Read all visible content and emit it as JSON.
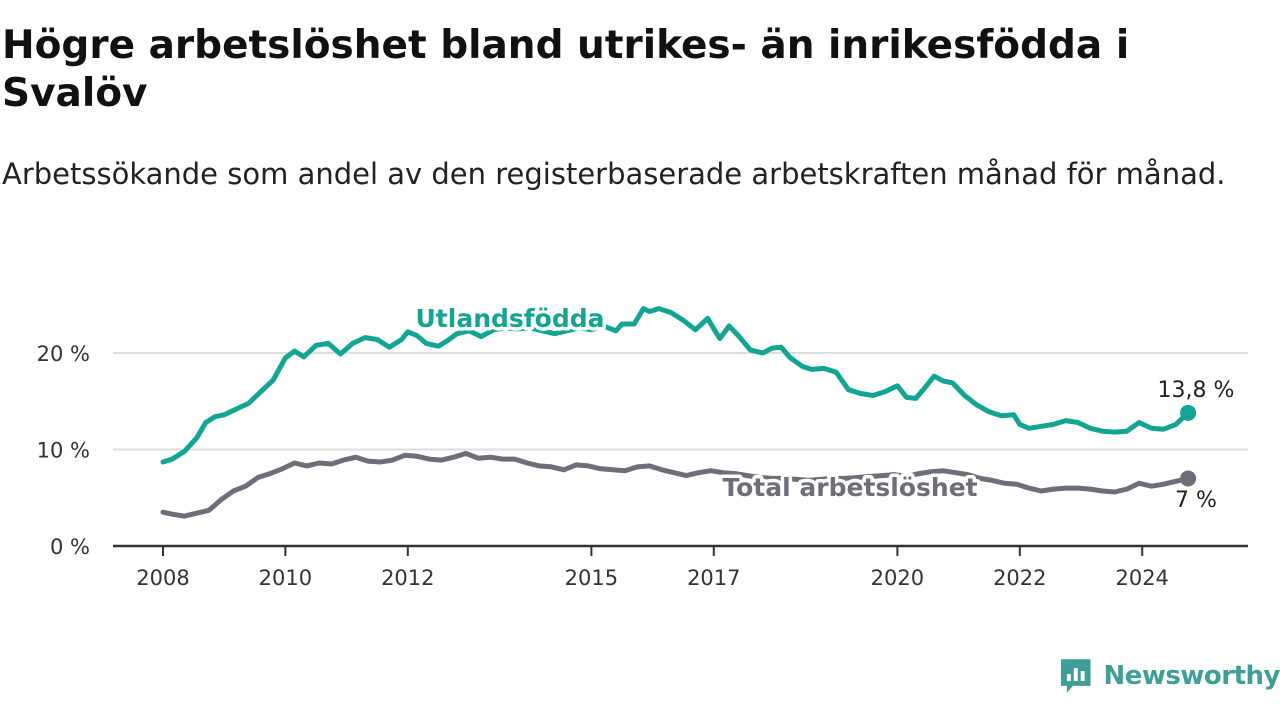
{
  "title": "Högre arbetslöshet bland utrikes- än inrikesfödda i Svalöv",
  "subtitle": "Arbetssökande som andel av den registerbaserade arbetskraften månad för månad.",
  "brand": {
    "name": "Newsworthy"
  },
  "colors": {
    "foreign_born": "#12a594",
    "total": "#6e6d78",
    "grid": "#dddddd",
    "axis": "#333333",
    "brand": "#3f9f98"
  },
  "chart_data": {
    "type": "line",
    "ylim": [
      0,
      25
    ],
    "yticks": [
      {
        "value": 0,
        "label": "0 %"
      },
      {
        "value": 10,
        "label": "10 %"
      },
      {
        "value": 20,
        "label": "20 %"
      }
    ],
    "xticks": [
      {
        "value": 2008,
        "label": "2008"
      },
      {
        "value": 2010,
        "label": "2010"
      },
      {
        "value": 2012,
        "label": "2012"
      },
      {
        "value": 2015,
        "label": "2015"
      },
      {
        "value": 2017,
        "label": "2017"
      },
      {
        "value": 2020,
        "label": "2020"
      },
      {
        "value": 2022,
        "label": "2022"
      },
      {
        "value": 2024,
        "label": "2024"
      }
    ],
    "grid": true,
    "series": [
      {
        "name": "Utlandsfödda",
        "end_label": "13,8 %",
        "points": [
          [
            2008.0,
            8.7
          ],
          [
            2008.15,
            9.0
          ],
          [
            2008.35,
            9.8
          ],
          [
            2008.55,
            11.2
          ],
          [
            2008.7,
            12.8
          ],
          [
            2008.85,
            13.4
          ],
          [
            2009.0,
            13.6
          ],
          [
            2009.2,
            14.2
          ],
          [
            2009.4,
            14.8
          ],
          [
            2009.6,
            16.0
          ],
          [
            2009.8,
            17.2
          ],
          [
            2010.0,
            19.5
          ],
          [
            2010.15,
            20.2
          ],
          [
            2010.3,
            19.6
          ],
          [
            2010.5,
            20.8
          ],
          [
            2010.7,
            21.0
          ],
          [
            2010.9,
            19.9
          ],
          [
            2011.1,
            21.0
          ],
          [
            2011.3,
            21.6
          ],
          [
            2011.5,
            21.4
          ],
          [
            2011.7,
            20.6
          ],
          [
            2011.9,
            21.4
          ],
          [
            2012.0,
            22.2
          ],
          [
            2012.15,
            21.8
          ],
          [
            2012.3,
            21.0
          ],
          [
            2012.5,
            20.7
          ],
          [
            2012.65,
            21.3
          ],
          [
            2012.8,
            22.0
          ],
          [
            2013.0,
            22.3
          ],
          [
            2013.2,
            21.7
          ],
          [
            2013.4,
            22.4
          ],
          [
            2013.6,
            22.6
          ],
          [
            2013.8,
            22.5
          ],
          [
            2014.0,
            22.6
          ],
          [
            2014.2,
            22.3
          ],
          [
            2014.4,
            22.0
          ],
          [
            2014.6,
            22.3
          ],
          [
            2014.8,
            22.6
          ],
          [
            2015.0,
            22.4
          ],
          [
            2015.2,
            22.8
          ],
          [
            2015.4,
            22.3
          ],
          [
            2015.5,
            23.0
          ],
          [
            2015.7,
            23.0
          ],
          [
            2015.85,
            24.6
          ],
          [
            2015.95,
            24.3
          ],
          [
            2016.1,
            24.6
          ],
          [
            2016.3,
            24.2
          ],
          [
            2016.5,
            23.4
          ],
          [
            2016.7,
            22.4
          ],
          [
            2016.9,
            23.6
          ],
          [
            2017.0,
            22.5
          ],
          [
            2017.1,
            21.5
          ],
          [
            2017.25,
            22.8
          ],
          [
            2017.4,
            21.8
          ],
          [
            2017.6,
            20.3
          ],
          [
            2017.8,
            20.0
          ],
          [
            2017.95,
            20.5
          ],
          [
            2018.1,
            20.6
          ],
          [
            2018.25,
            19.5
          ],
          [
            2018.45,
            18.6
          ],
          [
            2018.6,
            18.3
          ],
          [
            2018.8,
            18.4
          ],
          [
            2019.0,
            18.0
          ],
          [
            2019.2,
            16.2
          ],
          [
            2019.4,
            15.8
          ],
          [
            2019.6,
            15.6
          ],
          [
            2019.8,
            16.0
          ],
          [
            2020.0,
            16.6
          ],
          [
            2020.15,
            15.4
          ],
          [
            2020.3,
            15.3
          ],
          [
            2020.45,
            16.4
          ],
          [
            2020.6,
            17.6
          ],
          [
            2020.75,
            17.1
          ],
          [
            2020.9,
            16.9
          ],
          [
            2021.1,
            15.6
          ],
          [
            2021.3,
            14.6
          ],
          [
            2021.5,
            13.9
          ],
          [
            2021.7,
            13.5
          ],
          [
            2021.9,
            13.6
          ],
          [
            2022.0,
            12.6
          ],
          [
            2022.15,
            12.2
          ],
          [
            2022.35,
            12.4
          ],
          [
            2022.55,
            12.6
          ],
          [
            2022.75,
            13.0
          ],
          [
            2022.95,
            12.8
          ],
          [
            2023.15,
            12.2
          ],
          [
            2023.35,
            11.9
          ],
          [
            2023.55,
            11.8
          ],
          [
            2023.75,
            11.9
          ],
          [
            2023.95,
            12.8
          ],
          [
            2024.15,
            12.2
          ],
          [
            2024.35,
            12.1
          ],
          [
            2024.55,
            12.6
          ],
          [
            2024.75,
            13.8
          ]
        ]
      },
      {
        "name": "Total arbetslöshet",
        "end_label": "7 %",
        "points": [
          [
            2008.0,
            3.5
          ],
          [
            2008.15,
            3.3
          ],
          [
            2008.35,
            3.1
          ],
          [
            2008.55,
            3.4
          ],
          [
            2008.75,
            3.7
          ],
          [
            2008.95,
            4.8
          ],
          [
            2009.15,
            5.7
          ],
          [
            2009.35,
            6.2
          ],
          [
            2009.55,
            7.1
          ],
          [
            2009.75,
            7.5
          ],
          [
            2009.95,
            8.0
          ],
          [
            2010.15,
            8.6
          ],
          [
            2010.35,
            8.3
          ],
          [
            2010.55,
            8.6
          ],
          [
            2010.75,
            8.5
          ],
          [
            2010.95,
            8.9
          ],
          [
            2011.15,
            9.2
          ],
          [
            2011.35,
            8.8
          ],
          [
            2011.55,
            8.7
          ],
          [
            2011.75,
            8.9
          ],
          [
            2011.95,
            9.4
          ],
          [
            2012.15,
            9.3
          ],
          [
            2012.35,
            9.0
          ],
          [
            2012.55,
            8.9
          ],
          [
            2012.75,
            9.2
          ],
          [
            2012.95,
            9.6
          ],
          [
            2013.15,
            9.1
          ],
          [
            2013.35,
            9.2
          ],
          [
            2013.55,
            9.0
          ],
          [
            2013.75,
            9.0
          ],
          [
            2013.95,
            8.6
          ],
          [
            2014.15,
            8.3
          ],
          [
            2014.35,
            8.2
          ],
          [
            2014.55,
            7.9
          ],
          [
            2014.75,
            8.4
          ],
          [
            2014.95,
            8.3
          ],
          [
            2015.15,
            8.0
          ],
          [
            2015.35,
            7.9
          ],
          [
            2015.55,
            7.8
          ],
          [
            2015.75,
            8.2
          ],
          [
            2015.95,
            8.3
          ],
          [
            2016.15,
            7.9
          ],
          [
            2016.35,
            7.6
          ],
          [
            2016.55,
            7.3
          ],
          [
            2016.75,
            7.6
          ],
          [
            2016.95,
            7.8
          ],
          [
            2017.15,
            7.6
          ],
          [
            2017.35,
            7.5
          ],
          [
            2017.55,
            7.3
          ],
          [
            2017.75,
            7.1
          ],
          [
            2017.95,
            7.0
          ],
          [
            2018.15,
            7.0
          ],
          [
            2018.35,
            6.9
          ],
          [
            2018.55,
            6.8
          ],
          [
            2018.75,
            6.9
          ],
          [
            2018.95,
            7.0
          ],
          [
            2019.15,
            7.0
          ],
          [
            2019.35,
            7.1
          ],
          [
            2019.55,
            7.2
          ],
          [
            2019.75,
            7.3
          ],
          [
            2019.95,
            7.4
          ],
          [
            2020.15,
            7.2
          ],
          [
            2020.35,
            7.5
          ],
          [
            2020.55,
            7.7
          ],
          [
            2020.75,
            7.8
          ],
          [
            2020.95,
            7.6
          ],
          [
            2021.15,
            7.4
          ],
          [
            2021.35,
            7.0
          ],
          [
            2021.55,
            6.8
          ],
          [
            2021.75,
            6.5
          ],
          [
            2021.95,
            6.4
          ],
          [
            2022.15,
            6.0
          ],
          [
            2022.35,
            5.7
          ],
          [
            2022.55,
            5.9
          ],
          [
            2022.75,
            6.0
          ],
          [
            2022.95,
            6.0
          ],
          [
            2023.15,
            5.9
          ],
          [
            2023.35,
            5.7
          ],
          [
            2023.55,
            5.6
          ],
          [
            2023.75,
            5.9
          ],
          [
            2023.95,
            6.5
          ],
          [
            2024.15,
            6.2
          ],
          [
            2024.35,
            6.4
          ],
          [
            2024.55,
            6.7
          ],
          [
            2024.75,
            7.0
          ]
        ]
      }
    ]
  }
}
